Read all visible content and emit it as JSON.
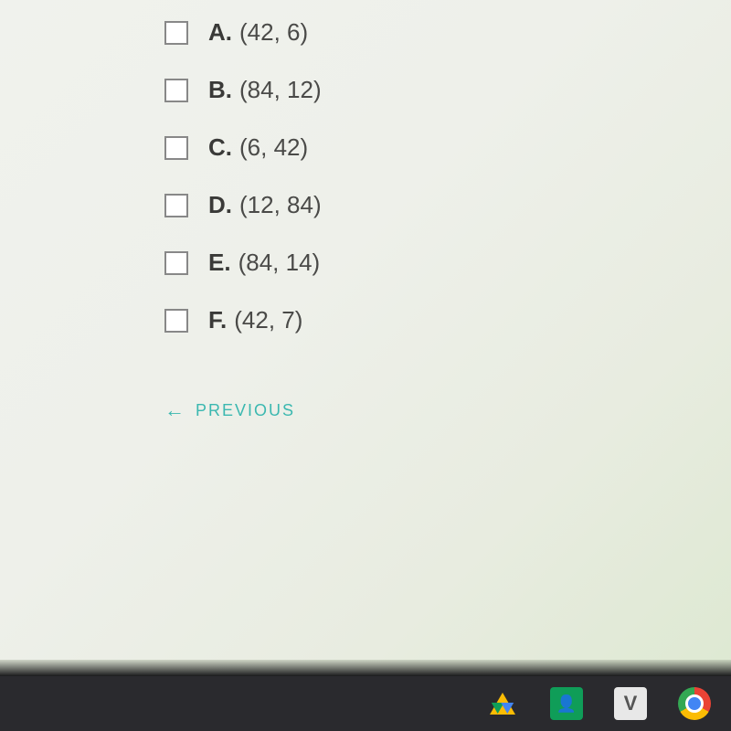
{
  "options": [
    {
      "letter": "A.",
      "value": "(42, 6)"
    },
    {
      "letter": "B.",
      "value": "(84, 12)"
    },
    {
      "letter": "C.",
      "value": "(6, 42)"
    },
    {
      "letter": "D.",
      "value": "(12, 84)"
    },
    {
      "letter": "E.",
      "value": "(84, 14)"
    },
    {
      "letter": "F.",
      "value": "(42, 7)"
    }
  ],
  "navigation": {
    "previous_label": "PREVIOUS",
    "arrow_glyph": "←"
  },
  "taskbar": {
    "v_label": "V",
    "classroom_glyph": "👤"
  },
  "styling": {
    "checkbox_border": "#888888",
    "text_color": "#3a3a38",
    "link_color": "#3bb8b0",
    "taskbar_bg": "#2a2a2e",
    "option_fontsize": 26,
    "letter_fontweight": "bold"
  }
}
